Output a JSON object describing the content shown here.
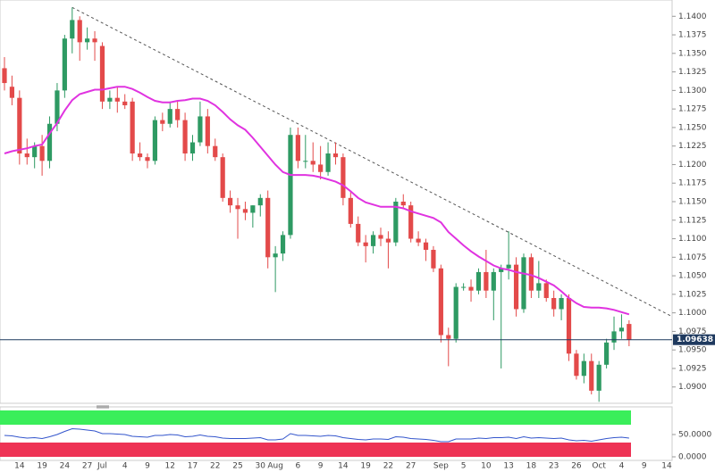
{
  "chart_data": [
    {
      "type": "candlestick",
      "categories": [
        null,
        null,
        "14",
        null,
        null,
        "19",
        null,
        null,
        "24",
        null,
        null,
        "27",
        null,
        "Jul",
        null,
        null,
        "4",
        null,
        null,
        "9",
        null,
        null,
        "12",
        null,
        null,
        "17",
        null,
        null,
        "22",
        null,
        null,
        "25",
        null,
        null,
        "30",
        null,
        "Aug",
        null,
        null,
        "6",
        null,
        null,
        "9",
        null,
        null,
        "14",
        null,
        null,
        "19",
        null,
        null,
        "22",
        null,
        null,
        "27",
        null,
        null,
        null,
        "Sep",
        null,
        null,
        "5",
        null,
        null,
        "10",
        null,
        null,
        "13",
        null,
        null,
        "18",
        null,
        null,
        "23",
        null,
        null,
        "26",
        null,
        null,
        "Oct",
        null,
        null,
        "4",
        null,
        null,
        "9",
        null,
        null,
        "14"
      ],
      "open": [
        1.133,
        1.1305,
        1.129,
        1.1215,
        1.121,
        1.1225,
        1.1205,
        1.1255,
        1.13,
        1.137,
        1.1395,
        1.1365,
        1.137,
        1.136,
        1.1285,
        1.129,
        1.1285,
        1.1285,
        1.1215,
        1.121,
        1.1205,
        1.126,
        1.1255,
        1.1275,
        1.126,
        1.1215,
        1.123,
        1.1265,
        1.1225,
        1.121,
        1.1155,
        1.1145,
        1.114,
        1.1135,
        1.1145,
        1.1155,
        1.1075,
        1.108,
        1.1105,
        1.124,
        1.1205,
        1.1205,
        1.12,
        1.119,
        1.1215,
        1.121,
        1.1155,
        1.112,
        1.1095,
        1.109,
        1.1105,
        1.11,
        1.1095,
        1.115,
        1.1145,
        1.11,
        1.1095,
        1.1085,
        1.106,
        1.097,
        1.0965,
        1.1035,
        1.1035,
        1.103,
        1.1055,
        1.103,
        1.1055,
        1.106,
        1.1065,
        1.1005,
        1.1075,
        1.103,
        1.104,
        1.102,
        1.1005,
        1.102,
        1.0945,
        1.0915,
        1.0935,
        1.0895,
        1.093,
        1.096,
        1.0975,
        1.0985,
        null,
        null,
        null,
        null,
        null
      ],
      "high": [
        1.1345,
        1.132,
        1.13,
        1.1235,
        1.123,
        1.124,
        1.1265,
        1.131,
        1.1375,
        1.1412,
        1.14,
        1.1385,
        1.138,
        1.1365,
        1.13,
        1.1305,
        1.1295,
        1.129,
        1.123,
        1.1215,
        1.1265,
        1.127,
        1.1285,
        1.1285,
        1.127,
        1.124,
        1.1285,
        1.1275,
        1.1235,
        1.1215,
        1.1165,
        1.1155,
        1.115,
        1.1145,
        1.116,
        1.1165,
        1.109,
        1.111,
        1.125,
        1.125,
        1.124,
        1.123,
        1.1225,
        1.123,
        1.123,
        1.1215,
        1.1165,
        1.113,
        1.1105,
        1.111,
        1.1115,
        1.111,
        1.1155,
        1.116,
        1.115,
        1.111,
        1.11,
        1.109,
        1.1065,
        1.098,
        1.104,
        1.104,
        1.1045,
        1.106,
        1.1085,
        1.106,
        1.1065,
        1.111,
        1.1075,
        1.108,
        1.108,
        1.107,
        1.1045,
        1.103,
        1.1025,
        1.1025,
        1.095,
        1.0945,
        1.0945,
        1.0935,
        1.0965,
        1.0995,
        1.0998,
        1.099,
        null,
        null,
        null,
        null,
        null
      ],
      "low": [
        1.13,
        1.128,
        1.12,
        1.12,
        1.1195,
        1.1185,
        1.1195,
        1.1245,
        1.129,
        1.135,
        1.134,
        1.1355,
        1.134,
        1.1275,
        1.1275,
        1.127,
        1.1275,
        1.1205,
        1.1205,
        1.1195,
        1.12,
        1.1245,
        1.125,
        1.125,
        1.1205,
        1.1205,
        1.1225,
        1.1215,
        1.1205,
        1.115,
        1.1135,
        1.11,
        1.1125,
        1.1115,
        1.113,
        1.106,
        1.1028,
        1.107,
        1.11,
        1.1195,
        1.1195,
        1.119,
        1.118,
        1.1185,
        1.12,
        1.1145,
        1.1115,
        1.109,
        1.1068,
        1.108,
        1.109,
        1.106,
        1.109,
        1.114,
        1.1095,
        1.109,
        1.107,
        1.1055,
        1.096,
        1.0928,
        1.096,
        1.103,
        1.1015,
        1.1025,
        1.102,
        1.099,
        1.0925,
        1.1045,
        1.0995,
        1.1,
        1.102,
        1.102,
        1.1015,
        1.0995,
        1.099,
        1.0935,
        1.091,
        1.0905,
        1.089,
        1.088,
        1.0925,
        1.095,
        1.0965,
        1.0955,
        null,
        null,
        null,
        null,
        null
      ],
      "close": [
        1.131,
        1.129,
        1.1215,
        1.121,
        1.1225,
        1.1205,
        1.1255,
        1.13,
        1.137,
        1.1395,
        1.1365,
        1.137,
        1.1365,
        1.1285,
        1.129,
        1.1285,
        1.128,
        1.1215,
        1.121,
        1.1205,
        1.126,
        1.1255,
        1.1275,
        1.126,
        1.1215,
        1.123,
        1.1265,
        1.1225,
        1.121,
        1.1155,
        1.1145,
        1.114,
        1.1135,
        1.1145,
        1.1155,
        1.1075,
        1.108,
        1.1105,
        1.124,
        1.1205,
        1.1205,
        1.12,
        1.119,
        1.1215,
        1.121,
        1.1155,
        1.112,
        1.1095,
        1.109,
        1.1105,
        1.11,
        1.1095,
        1.115,
        1.1145,
        1.11,
        1.1095,
        1.1085,
        1.106,
        1.097,
        1.0965,
        1.1035,
        1.1035,
        1.103,
        1.1055,
        1.103,
        1.1055,
        1.106,
        1.1065,
        1.1005,
        1.1075,
        1.103,
        1.104,
        1.102,
        1.1005,
        1.102,
        1.0945,
        1.0915,
        1.0935,
        1.0895,
        1.093,
        1.096,
        1.0975,
        1.098,
        1.09638,
        null,
        null,
        null,
        null,
        null
      ],
      "up_color": "#2e9a63",
      "down_color": "#e34a4a",
      "moving_average": {
        "color": "#e033e0",
        "values": [
          1.1215,
          1.1218,
          1.122,
          1.1222,
          1.1225,
          1.1227,
          1.1242,
          1.1256,
          1.1273,
          1.1287,
          1.1295,
          1.1298,
          1.1301,
          1.1301,
          1.1303,
          1.1305,
          1.1305,
          1.1302,
          1.1297,
          1.1291,
          1.1286,
          1.1284,
          1.1284,
          1.1286,
          1.1287,
          1.1289,
          1.1289,
          1.1286,
          1.128,
          1.1271,
          1.1261,
          1.1253,
          1.1247,
          1.1236,
          1.1224,
          1.1212,
          1.12,
          1.119,
          1.1186,
          1.1186,
          1.1186,
          1.1185,
          1.1183,
          1.118,
          1.1177,
          1.1172,
          1.1164,
          1.1155,
          1.1149,
          1.1146,
          1.1143,
          1.1143,
          1.1143,
          1.1141,
          1.1137,
          1.1134,
          1.1131,
          1.1128,
          1.1122,
          1.1109,
          1.11,
          1.1091,
          1.1083,
          1.1076,
          1.107,
          1.1064,
          1.106,
          1.1058,
          1.1055,
          1.1053,
          1.1051,
          1.1047,
          1.1042,
          1.1037,
          1.1029,
          1.102,
          1.1013,
          1.1008,
          1.1007,
          1.1007,
          1.1006,
          1.1004,
          1.1001,
          1.0998,
          null,
          null,
          null,
          null,
          null
        ]
      },
      "trendline": {
        "color": "#555555",
        "values": [
          1.1412,
          1.0995
        ]
      },
      "last_price": {
        "value": 1.09638,
        "label": "1.09638"
      },
      "ylim": [
        1.0878,
        1.1422
      ],
      "yticks": [
        {
          "value": 1.09,
          "label": "1.0900"
        },
        {
          "value": 1.0925,
          "label": "1.0925"
        },
        {
          "value": 1.095,
          "label": "1.0950"
        },
        {
          "value": 1.0975,
          "label": "1.0975"
        },
        {
          "value": 1.1,
          "label": "1.1000"
        },
        {
          "value": 1.1025,
          "label": "1.1025"
        },
        {
          "value": 1.105,
          "label": "1.1050"
        },
        {
          "value": 1.1075,
          "label": "1.1075"
        },
        {
          "value": 1.11,
          "label": "1.1100"
        },
        {
          "value": 1.1125,
          "label": "1.1125"
        },
        {
          "value": 1.115,
          "label": "1.1150"
        },
        {
          "value": 1.1175,
          "label": "1.1175"
        },
        {
          "value": 1.12,
          "label": "1.1200"
        },
        {
          "value": 1.1225,
          "label": "1.1225"
        },
        {
          "value": 1.125,
          "label": "1.1250"
        },
        {
          "value": 1.1275,
          "label": "1.1275"
        },
        {
          "value": 1.13,
          "label": "1.1300"
        },
        {
          "value": 1.1325,
          "label": "1.1325"
        },
        {
          "value": 1.135,
          "label": "1.1350"
        },
        {
          "value": 1.1375,
          "label": "1.1375"
        },
        {
          "value": 1.14,
          "label": "1.1400"
        }
      ]
    },
    {
      "type": "line",
      "color": "#3355cc",
      "values": [
        48,
        47,
        44,
        42,
        43,
        41,
        45,
        50,
        57,
        63,
        62,
        60,
        58,
        52,
        52,
        51,
        50,
        46,
        45,
        44,
        48,
        48,
        50,
        49,
        45,
        46,
        49,
        46,
        45,
        42,
        41,
        41,
        41,
        42,
        43,
        38,
        38,
        40,
        52,
        48,
        48,
        47,
        46,
        48,
        47,
        43,
        41,
        39,
        38,
        40,
        40,
        39,
        45,
        44,
        41,
        40,
        39,
        37,
        34,
        34,
        40,
        40,
        40,
        42,
        41,
        43,
        43,
        44,
        41,
        45,
        42,
        43,
        42,
        41,
        42,
        38,
        36,
        37,
        35,
        38,
        41,
        43,
        44,
        42,
        null,
        null,
        null,
        null,
        null
      ],
      "ylim": [
        0,
        100
      ],
      "yticks": [
        {
          "value": 0,
          "label": "0.0000"
        },
        {
          "value": 50,
          "label": "50.0000"
        }
      ]
    }
  ]
}
